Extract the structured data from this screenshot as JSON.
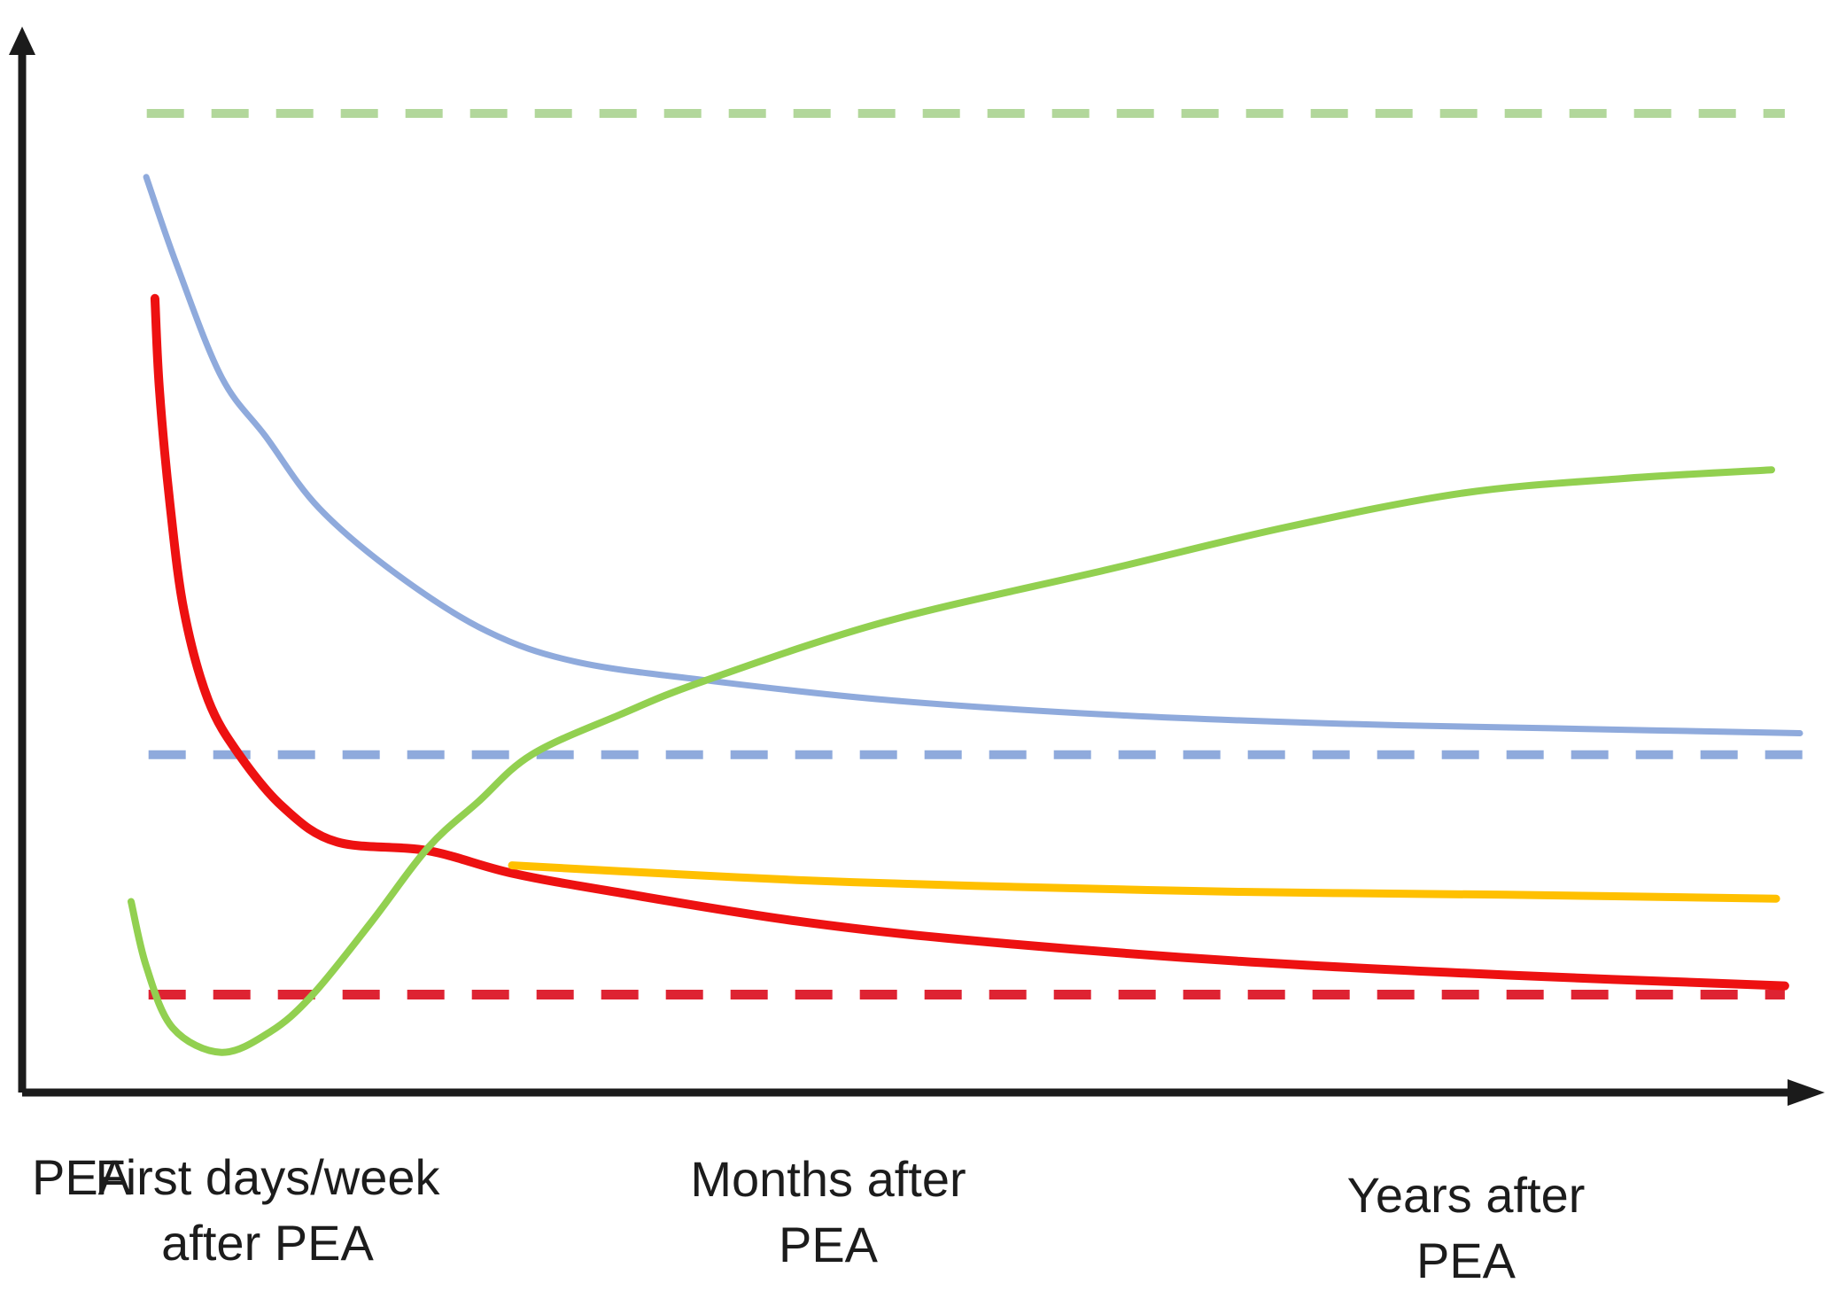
{
  "figure": {
    "title": "",
    "background_color": "#ffffff",
    "axis_color": "#1b1b1b",
    "text_color": "#1c1c1c"
  },
  "chart_data": {
    "type": "line",
    "title": "",
    "xlabel": "",
    "ylabel": "",
    "grid": false,
    "legend": "none",
    "x_axis": {
      "style": "black arrow pointing right, no tick marks, no numbers",
      "labels": [
        {
          "lines": [
            "PEA"
          ]
        },
        {
          "lines": [
            "First days/week",
            "after PEA"
          ]
        },
        {
          "lines": [
            "Months after",
            "PEA"
          ]
        },
        {
          "lines": [
            "Years after",
            "PEA"
          ]
        }
      ]
    },
    "y_axis": {
      "style": "black arrow pointing up, no tick marks, no numbers",
      "units": "relative level, 0 = x-axis, 100 = top dashed baseline"
    },
    "series": [
      {
        "name": "green-dashed-baseline",
        "style": "dashed",
        "color": "#b2d79b",
        "width": 10,
        "points": [
          [
            7.0,
            100.0
          ],
          [
            99.0,
            100.0
          ]
        ]
      },
      {
        "name": "blue-dashed-baseline",
        "style": "dashed",
        "color": "#8faadc",
        "width": 10,
        "points": [
          [
            7.1,
            34.5
          ],
          [
            100.0,
            34.5
          ]
        ]
      },
      {
        "name": "red-dashed-baseline",
        "style": "dashed",
        "color": "#de2332",
        "width": 11,
        "points": [
          [
            7.1,
            10.0
          ],
          [
            99.0,
            10.0
          ]
        ]
      },
      {
        "name": "blue-solid-curve",
        "style": "solid",
        "color": "#8faadc",
        "width": 7,
        "points": [
          [
            6.97,
            93.5
          ],
          [
            8.71,
            84.4
          ],
          [
            11.19,
            73.1
          ],
          [
            13.68,
            67.0
          ],
          [
            16.67,
            59.7
          ],
          [
            21.14,
            52.8
          ],
          [
            26.12,
            47.1
          ],
          [
            31.09,
            44.0
          ],
          [
            38.41,
            42.1
          ],
          [
            48.51,
            40.1
          ],
          [
            60.95,
            38.6
          ],
          [
            73.38,
            37.7
          ],
          [
            85.82,
            37.2
          ],
          [
            99.85,
            36.7
          ]
        ]
      },
      {
        "name": "red-solid-curve",
        "style": "solid",
        "color": "#ed1111",
        "width": 10,
        "points": [
          [
            7.46,
            81.1
          ],
          [
            7.71,
            71.8
          ],
          [
            8.31,
            60.0
          ],
          [
            9.1,
            49.1
          ],
          [
            10.45,
            40.1
          ],
          [
            12.19,
            34.5
          ],
          [
            14.68,
            29.1
          ],
          [
            17.66,
            25.6
          ],
          [
            22.79,
            24.7
          ],
          [
            27.51,
            22.4
          ],
          [
            33.58,
            20.4
          ],
          [
            43.53,
            17.5
          ],
          [
            53.48,
            15.5
          ],
          [
            68.41,
            13.4
          ],
          [
            83.33,
            12.0
          ],
          [
            99.0,
            10.9
          ]
        ]
      },
      {
        "name": "green-solid-curve",
        "style": "solid",
        "color": "#92d050",
        "width": 8,
        "points": [
          [
            6.12,
            19.5
          ],
          [
            6.97,
            12.9
          ],
          [
            8.46,
            6.6
          ],
          [
            11.19,
            4.1
          ],
          [
            13.93,
            6.2
          ],
          [
            16.32,
            10.0
          ],
          [
            19.65,
            17.5
          ],
          [
            22.79,
            25.0
          ],
          [
            25.62,
            29.7
          ],
          [
            28.61,
            34.5
          ],
          [
            33.58,
            38.6
          ],
          [
            38.41,
            42.1
          ],
          [
            48.51,
            48.1
          ],
          [
            60.95,
            53.4
          ],
          [
            70.9,
            57.7
          ],
          [
            80.85,
            61.2
          ],
          [
            89.8,
            62.7
          ],
          [
            98.26,
            63.6
          ]
        ]
      },
      {
        "name": "orange-solid-curve",
        "style": "solid",
        "color": "#ffc000",
        "width": 9,
        "points": [
          [
            27.51,
            23.2
          ],
          [
            33.58,
            22.6
          ],
          [
            43.53,
            21.7
          ],
          [
            53.48,
            21.1
          ],
          [
            68.41,
            20.5
          ],
          [
            83.33,
            20.2
          ],
          [
            98.51,
            19.8
          ]
        ]
      }
    ]
  }
}
